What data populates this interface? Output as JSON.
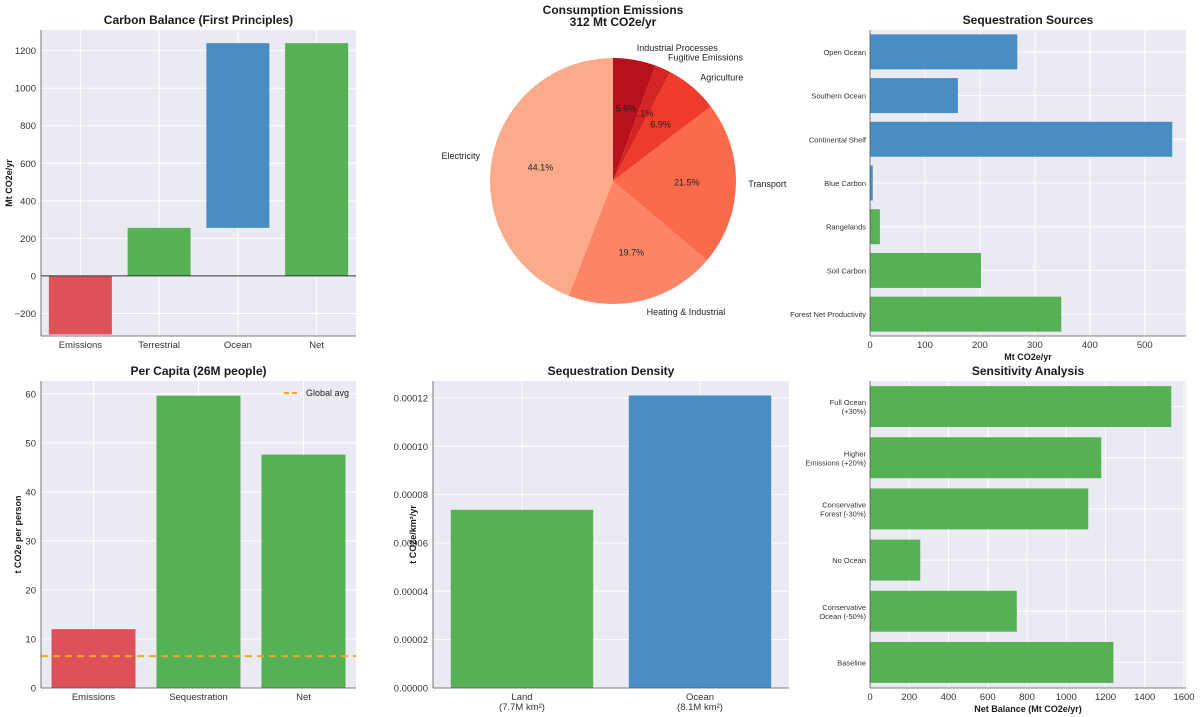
{
  "colors": {
    "emissions": "#dc4a4f",
    "green": "#4dae4a",
    "blue": "#3f89c2",
    "orange": "#f5a623",
    "plot_bg": "#eaeaf2",
    "pie": [
      "#fbab8c",
      "#fb8566",
      "#fb6a4a",
      "#ef3b2c",
      "#d42524",
      "#b8111c"
    ]
  },
  "chart_data": [
    {
      "id": "carbon-balance",
      "type": "bar",
      "title": "Carbon Balance (First Principles)",
      "xlabel": "",
      "ylabel": "Mt CO2e/yr",
      "categories": [
        "Emissions",
        "Terrestrial",
        "Ocean",
        "Net"
      ],
      "bars": [
        {
          "label": "Emissions",
          "start": 0,
          "end": -312,
          "color": "emissions"
        },
        {
          "label": "Terrestrial",
          "start": 0,
          "end": 256,
          "color": "green"
        },
        {
          "label": "Ocean",
          "start": 256,
          "end": 1240,
          "color": "blue"
        },
        {
          "label": "Net",
          "start": 0,
          "end": 1240,
          "color": "green"
        }
      ],
      "ylim": [
        -320,
        1310
      ],
      "yticks": [
        -200,
        0,
        200,
        400,
        600,
        800,
        1000,
        1200
      ],
      "ytick_labels": [
        "−200",
        "0",
        "200",
        "400",
        "600",
        "800",
        "1000",
        "1200"
      ],
      "zero_line": true
    },
    {
      "id": "consumption-emissions",
      "type": "pie",
      "title": "Consumption Emissions",
      "subtitle": "312 Mt CO2e/yr",
      "slices": [
        {
          "label": "Electricity",
          "pct": 44.1,
          "pct_label": "44.1%"
        },
        {
          "label": "Heating & Industrial",
          "pct": 19.7,
          "pct_label": "19.7%"
        },
        {
          "label": "Transport",
          "pct": 21.5,
          "pct_label": "21.5%"
        },
        {
          "label": "Agriculture",
          "pct": 6.9,
          "pct_label": "6.9%"
        },
        {
          "label": "Fugitive Emissions",
          "pct": 2.1,
          "pct_label": "2.1%"
        },
        {
          "label": "Industrial Processes",
          "pct": 5.6,
          "pct_label": "5.6%"
        }
      ]
    },
    {
      "id": "sequestration-sources",
      "type": "bar",
      "orientation": "horizontal",
      "title": "Sequestration Sources",
      "xlabel": "Mt CO2e/yr",
      "ylabel": "",
      "categories": [
        "Open Ocean",
        "Southern Ocean",
        "Continental Shelf",
        "Blue Carbon",
        "Rangelands",
        "Soil Carbon",
        "Forest Net Productivity"
      ],
      "values": [
        268,
        160,
        550,
        5,
        18,
        202,
        348
      ],
      "bar_colors": [
        "blue",
        "blue",
        "blue",
        "blue",
        "green",
        "green",
        "green"
      ],
      "xlim": [
        0,
        575
      ],
      "xticks": [
        0,
        100,
        200,
        300,
        400,
        500
      ],
      "xtick_labels": [
        "0",
        "100",
        "200",
        "300",
        "400",
        "500"
      ]
    },
    {
      "id": "per-capita",
      "type": "bar",
      "title": "Per Capita (26M people)",
      "xlabel": "",
      "ylabel": "t CO2e per person",
      "categories": [
        "Emissions",
        "Sequestration",
        "Net"
      ],
      "values": [
        12,
        59.6,
        47.6
      ],
      "bar_colors": [
        "emissions",
        "green",
        "green"
      ],
      "ylim": [
        0,
        62.6
      ],
      "yticks": [
        0,
        10,
        20,
        30,
        40,
        50,
        60
      ],
      "ytick_labels": [
        "0",
        "10",
        "20",
        "30",
        "40",
        "50",
        "60"
      ],
      "hline": {
        "value": 6.5,
        "label": "Global avg",
        "color": "orange"
      }
    },
    {
      "id": "sequestration-density",
      "type": "bar",
      "title": "Sequestration Density",
      "xlabel": "",
      "ylabel": "t CO2e/km²/yr",
      "categories": [
        "Land\n(7.7M km²)",
        "Ocean\n(8.1M km²)"
      ],
      "values": [
        7.37e-05,
        0.000121
      ],
      "bar_colors": [
        "green",
        "blue"
      ],
      "ylim": [
        0,
        0.000127
      ],
      "yticks": [
        0,
        2e-05,
        4e-05,
        6e-05,
        8e-05,
        0.0001,
        0.00012
      ],
      "ytick_labels": [
        "0.00000",
        "0.00002",
        "0.00004",
        "0.00006",
        "0.00008",
        "0.00010",
        "0.00012"
      ]
    },
    {
      "id": "sensitivity-analysis",
      "type": "bar",
      "orientation": "horizontal",
      "title": "Sensitivity Analysis",
      "xlabel": "Net Balance (Mt CO2e/yr)",
      "ylabel": "",
      "categories": [
        "Full Ocean\n(+30%)",
        "Higher\nEmissions (+20%)",
        "Conservative\nForest (-30%)",
        "No Ocean",
        "Conservative\nOcean (-50%)",
        "Baseline"
      ],
      "values": [
        1535,
        1178,
        1112,
        256,
        748,
        1240
      ],
      "bar_colors": [
        "green",
        "green",
        "green",
        "green",
        "green",
        "green"
      ],
      "xlim": [
        0,
        1610
      ],
      "xticks": [
        0,
        200,
        400,
        600,
        800,
        1000,
        1200,
        1400,
        1600
      ],
      "xtick_labels": [
        "0",
        "200",
        "400",
        "600",
        "800",
        "1000",
        "1200",
        "1400",
        "1600"
      ]
    }
  ]
}
